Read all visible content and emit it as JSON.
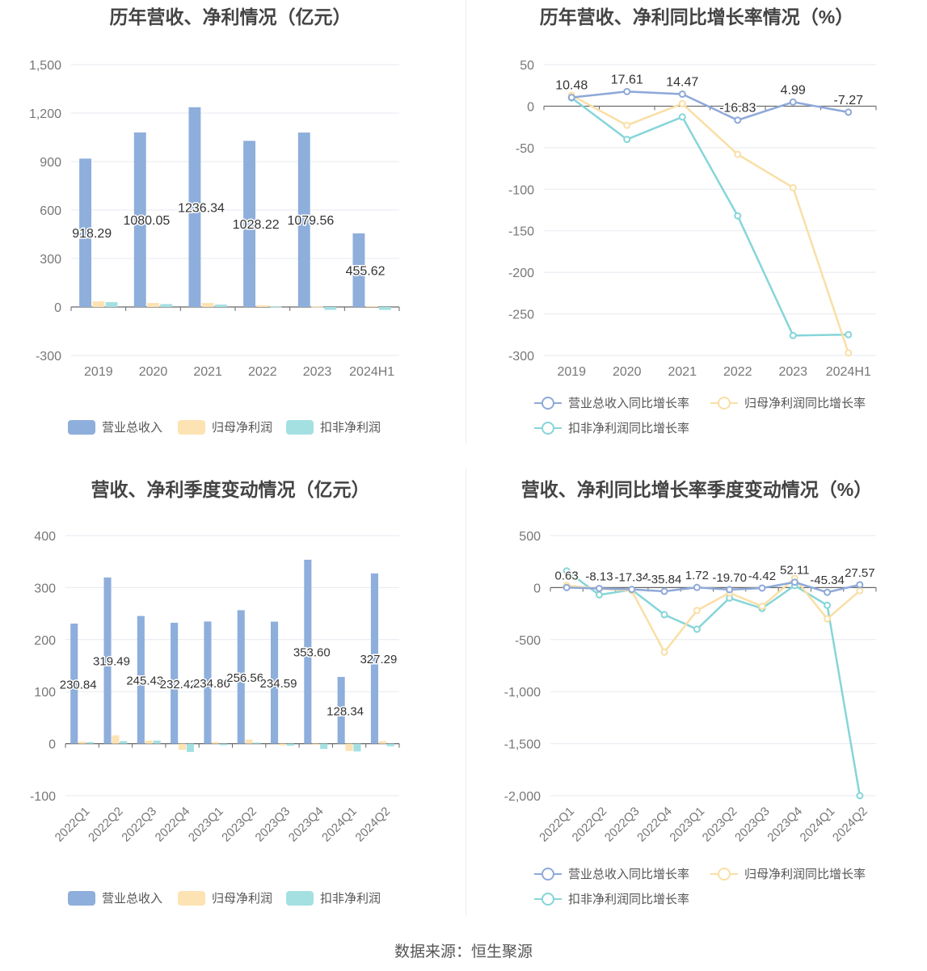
{
  "source_text": "数据来源：恒生聚源",
  "colors": {
    "revenue": "#8eaedb",
    "parent_profit": "#fde3b3",
    "deducted_profit": "#a4e0e2",
    "line_revenue": "#8ea9d9",
    "line_parent": "#f9dfa6",
    "line_deducted": "#86d5d8"
  },
  "chart_data": [
    {
      "type": "bar",
      "title": "历年营收、净利情况（亿元）",
      "categories": [
        "2019",
        "2020",
        "2021",
        "2022",
        "2023",
        "2024H1"
      ],
      "ylim": [
        -300,
        1500
      ],
      "yticks": [
        -300,
        0,
        300,
        600,
        900,
        1200,
        1500
      ],
      "ytick_labels": [
        "-300",
        "0",
        "300",
        "600",
        "900",
        "1,200",
        "1,500"
      ],
      "series": [
        {
          "name": "营业总收入",
          "values": [
            918.29,
            1080.05,
            1236.34,
            1028.22,
            1079.56,
            455.62
          ]
        },
        {
          "name": "归母净利润",
          "values": [
            35,
            25,
            25,
            10,
            3,
            5
          ]
        },
        {
          "name": "扣非净利润",
          "values": [
            30,
            18,
            15,
            3,
            -18,
            -18
          ]
        }
      ],
      "data_labels": [
        "918.29",
        "1080.05",
        "1236.34",
        "1028.22",
        "1079.56",
        "455.62"
      ],
      "legend": [
        "营业总收入",
        "归母净利润",
        "扣非净利润"
      ]
    },
    {
      "type": "line",
      "title": "历年营收、净利同比增长率情况（%）",
      "categories": [
        "2019",
        "2020",
        "2021",
        "2022",
        "2023",
        "2024H1"
      ],
      "ylim": [
        -300,
        50
      ],
      "yticks": [
        -300,
        -250,
        -200,
        -150,
        -100,
        -50,
        0,
        50
      ],
      "ytick_labels": [
        "-300",
        "-250",
        "-200",
        "-150",
        "-100",
        "-50",
        "0",
        "50"
      ],
      "series": [
        {
          "name": "营业总收入同比增长率",
          "values": [
            10.48,
            17.61,
            14.47,
            -16.83,
            4.99,
            -7.27
          ]
        },
        {
          "name": "归母净利润同比增长率",
          "values": [
            13,
            -23,
            3,
            -58,
            -98,
            -297
          ]
        },
        {
          "name": "扣非净利润同比增长率",
          "values": [
            10,
            -40,
            -13,
            -132,
            -276,
            -275
          ]
        }
      ],
      "data_labels": [
        "10.48",
        "17.61",
        "14.47",
        "-16.83",
        "4.99",
        "-7.27"
      ],
      "legend": [
        "营业总收入同比增长率",
        "归母净利润同比增长率",
        "扣非净利润同比增长率"
      ]
    },
    {
      "type": "bar",
      "title": "营收、净利季度变动情况（亿元）",
      "categories": [
        "2022Q1",
        "2022Q2",
        "2022Q3",
        "2022Q4",
        "2023Q1",
        "2023Q2",
        "2023Q3",
        "2023Q4",
        "2024Q1",
        "2024Q2"
      ],
      "ylim": [
        -100,
        400
      ],
      "yticks": [
        -100,
        0,
        100,
        200,
        300,
        400
      ],
      "ytick_labels": [
        "-100",
        "0",
        "100",
        "200",
        "300",
        "400"
      ],
      "series": [
        {
          "name": "营业总收入",
          "values": [
            230.84,
            319.49,
            245.43,
            232.42,
            234.86,
            256.56,
            234.59,
            353.6,
            128.34,
            327.29
          ]
        },
        {
          "name": "归母净利润",
          "values": [
            4,
            16,
            6,
            -12,
            3,
            8,
            -3,
            -2,
            -14,
            5
          ]
        },
        {
          "name": "扣非净利润",
          "values": [
            3,
            5,
            6,
            -16,
            -3,
            2,
            -4,
            -10,
            -15,
            -5
          ]
        }
      ],
      "data_labels": [
        "230.84",
        "319.49",
        "245.43",
        "232.42",
        "234.86",
        "256.56",
        "234.59",
        "353.60",
        "128.34",
        "327.29"
      ],
      "legend": [
        "营业总收入",
        "归母净利润",
        "扣非净利润"
      ]
    },
    {
      "type": "line",
      "title": "营收、净利同比增长率季度变动情况（%）",
      "categories": [
        "2022Q1",
        "2022Q2",
        "2022Q3",
        "2022Q4",
        "2023Q1",
        "2023Q2",
        "2023Q3",
        "2023Q4",
        "2024Q1",
        "2024Q2"
      ],
      "ylim": [
        -2000,
        500
      ],
      "yticks": [
        -2000,
        -1500,
        -1000,
        -500,
        0,
        500
      ],
      "ytick_labels": [
        "-2,000",
        "-1,500",
        "-1,000",
        "-500",
        "0",
        "500"
      ],
      "series": [
        {
          "name": "营业总收入同比增长率",
          "values": [
            0.63,
            -8.13,
            -17.34,
            -35.84,
            1.72,
            -19.7,
            -4.42,
            52.11,
            -45.34,
            27.57
          ]
        },
        {
          "name": "归母净利润同比增长率",
          "values": [
            20,
            -10,
            -30,
            -620,
            -220,
            -50,
            -180,
            90,
            -300,
            -30
          ]
        },
        {
          "name": "扣非净利润同比增长率",
          "values": [
            160,
            -70,
            -20,
            -260,
            -400,
            -100,
            -200,
            20,
            -170,
            -2000
          ]
        }
      ],
      "data_labels": [
        "0.63",
        "-8.13",
        "-17.34",
        "-35.84",
        "1.72",
        "-19.70",
        "-4.42",
        "52.11",
        "-45.34",
        "27.57"
      ],
      "legend": [
        "营业总收入同比增长率",
        "归母净利润同比增长率",
        "扣非净利润同比增长率"
      ]
    }
  ]
}
